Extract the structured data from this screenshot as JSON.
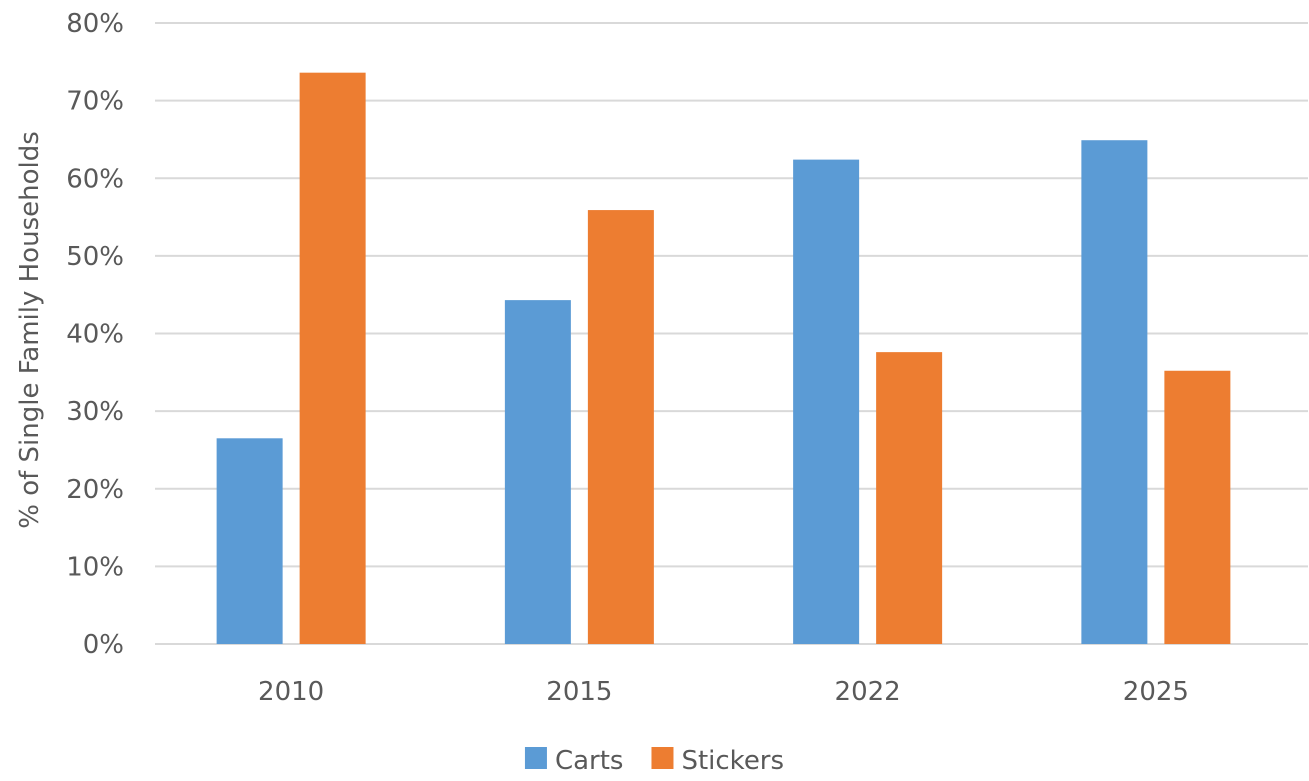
{
  "chart_data": {
    "type": "bar",
    "categories": [
      "2010",
      "2015",
      "2022",
      "2025"
    ],
    "series": [
      {
        "name": "Carts",
        "values": [
          26.5,
          44.3,
          62.4,
          64.9
        ],
        "color": "#5B9BD5"
      },
      {
        "name": "Stickers",
        "values": [
          73.6,
          55.9,
          37.6,
          35.2
        ],
        "color": "#ED7D31"
      }
    ],
    "title": "",
    "xlabel": "",
    "ylabel": "% of Single Family Households",
    "ylim": [
      0,
      80
    ],
    "yticks": [
      0,
      10,
      20,
      30,
      40,
      50,
      60,
      70,
      80
    ],
    "ytick_format": "percent",
    "grid": true,
    "grid_color": "#D9D9D9",
    "legend_position": "bottom"
  }
}
